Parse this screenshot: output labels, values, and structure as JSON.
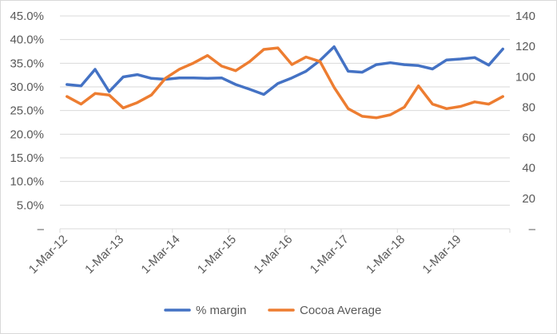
{
  "chart_data": {
    "type": "line",
    "title": "",
    "xlabel": "",
    "ylabel": "",
    "y_left": {
      "ylim": [
        0,
        0.45
      ],
      "tick_values": [
        0,
        0.05,
        0.1,
        0.15,
        0.2,
        0.25,
        0.3,
        0.35,
        0.4,
        0.45
      ],
      "tick_labels": [
        "–",
        "5.0%",
        "10.0%",
        "15.0%",
        "20.0%",
        "25.0%",
        "30.0%",
        "35.0%",
        "40.0%",
        "45.0%"
      ]
    },
    "y_right": {
      "ylim": [
        0,
        140
      ],
      "tick_values": [
        0,
        20,
        40,
        60,
        80,
        100,
        120,
        140
      ],
      "tick_labels": [
        "–",
        "20",
        "40",
        "60",
        "80",
        "100",
        "120",
        "140"
      ]
    },
    "x_ticks": [
      "1-Mar-12",
      "1-Mar-13",
      "1-Mar-14",
      "1-Mar-15",
      "1-Mar-16",
      "1-Mar-17",
      "1-Mar-18",
      "1-Mar-19"
    ],
    "x_quarters_total": 32,
    "grid": "horizontal",
    "legend_position": "bottom",
    "series": [
      {
        "name": "% margin",
        "axis": "left",
        "color": "#4472C4",
        "values": [
          0.305,
          0.302,
          0.337,
          0.29,
          0.321,
          0.326,
          0.318,
          0.316,
          0.319,
          0.319,
          0.318,
          0.319,
          0.305,
          0.295,
          0.284,
          0.307,
          0.319,
          0.333,
          0.356,
          0.385,
          0.333,
          0.331,
          0.347,
          0.351,
          0.347,
          0.345,
          0.338,
          0.357,
          0.359,
          0.362,
          0.346,
          0.38
        ]
      },
      {
        "name": "Cocoa Average",
        "axis": "right",
        "color": "#ED7D31",
        "values": [
          87.0,
          82.0,
          89.0,
          88.0,
          79.5,
          83.0,
          88.0,
          99.0,
          105.0,
          109.0,
          114.0,
          107.0,
          104.0,
          110.0,
          118.0,
          119.0,
          108.0,
          113.0,
          110.0,
          93.0,
          79.0,
          74.0,
          73.0,
          75.0,
          80.0,
          94.0,
          82.0,
          79.0,
          80.5,
          83.5,
          82.0,
          87.0
        ]
      }
    ]
  }
}
